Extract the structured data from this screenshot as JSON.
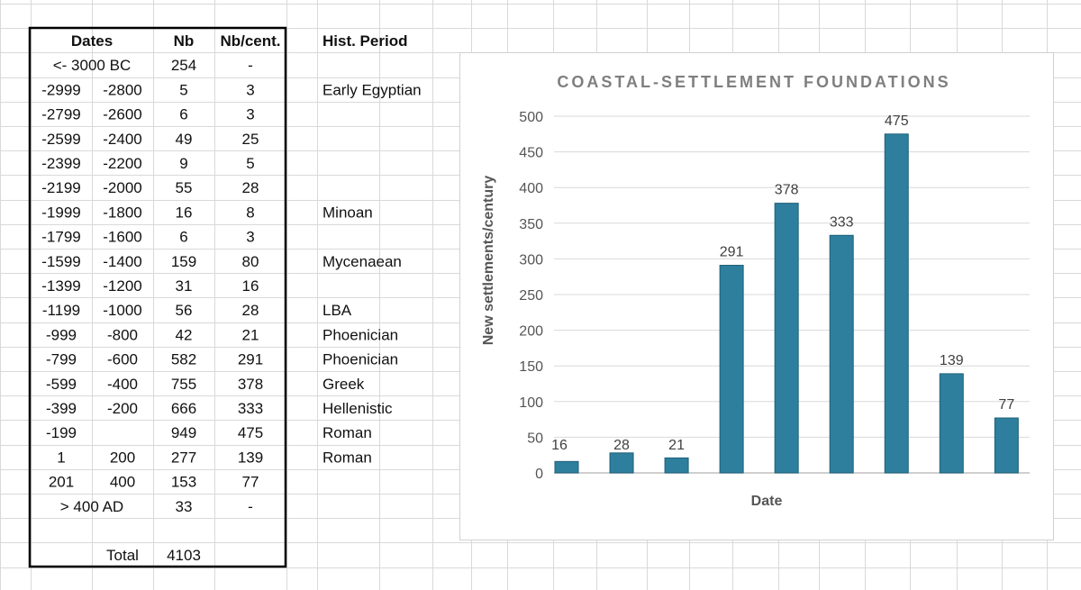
{
  "table": {
    "headers": [
      "Dates",
      "Nb",
      "Nb/cent.",
      "Hist. Period"
    ],
    "rows": [
      {
        "from": "<- 3000 BC",
        "to": "",
        "nb": "254",
        "per": "-",
        "period": ""
      },
      {
        "from": "-2999",
        "to": "-2800",
        "nb": "5",
        "per": "3",
        "period": "Early Egyptian"
      },
      {
        "from": "-2799",
        "to": "-2600",
        "nb": "6",
        "per": "3",
        "period": ""
      },
      {
        "from": "-2599",
        "to": "-2400",
        "nb": "49",
        "per": "25",
        "period": ""
      },
      {
        "from": "-2399",
        "to": "-2200",
        "nb": "9",
        "per": "5",
        "period": ""
      },
      {
        "from": "-2199",
        "to": "-2000",
        "nb": "55",
        "per": "28",
        "period": ""
      },
      {
        "from": "-1999",
        "to": "-1800",
        "nb": "16",
        "per": "8",
        "period": "Minoan"
      },
      {
        "from": "-1799",
        "to": "-1600",
        "nb": "6",
        "per": "3",
        "period": ""
      },
      {
        "from": "-1599",
        "to": "-1400",
        "nb": "159",
        "per": "80",
        "period": "Mycenaean"
      },
      {
        "from": "-1399",
        "to": "-1200",
        "nb": "31",
        "per": "16",
        "period": ""
      },
      {
        "from": "-1199",
        "to": "-1000",
        "nb": "56",
        "per": "28",
        "period": "LBA"
      },
      {
        "from": "-999",
        "to": "-800",
        "nb": "42",
        "per": "21",
        "period": "Phoenician"
      },
      {
        "from": "-799",
        "to": "-600",
        "nb": "582",
        "per": "291",
        "period": "Phoenician"
      },
      {
        "from": "-599",
        "to": "-400",
        "nb": "755",
        "per": "378",
        "period": "Greek"
      },
      {
        "from": "-399",
        "to": "-200",
        "nb": "666",
        "per": "333",
        "period": "Hellenistic"
      },
      {
        "from": "-199",
        "to": "",
        "nb": "949",
        "per": "475",
        "period": "Roman"
      },
      {
        "from": "1",
        "to": "200",
        "nb": "277",
        "per": "139",
        "period": "Roman"
      },
      {
        "from": "201",
        "to": "400",
        "nb": "153",
        "per": "77",
        "period": ""
      },
      {
        "from": "> 400 AD",
        "to": "",
        "nb": "33",
        "per": "-",
        "period": ""
      },
      {
        "from": "",
        "to": "",
        "nb": "",
        "per": "",
        "period": ""
      },
      {
        "from": "",
        "to": "Total",
        "nb": "4103",
        "per": "",
        "period": ""
      }
    ]
  },
  "chart_data": {
    "type": "bar",
    "title": "COASTAL-SETTLEMENT FOUNDATIONS",
    "xlabel": "Date",
    "ylabel": "New settlements/century",
    "ylim": [
      0,
      500
    ],
    "yticks": [
      0,
      50,
      100,
      150,
      200,
      250,
      300,
      350,
      400,
      450,
      500
    ],
    "values": [
      16,
      28,
      21,
      291,
      378,
      333,
      475,
      139,
      77
    ],
    "data_labels": [
      "16",
      "28",
      "21",
      "291",
      "378",
      "333",
      "475",
      "139",
      "77"
    ],
    "bar_color": "#2e7f9e",
    "grid": true
  }
}
